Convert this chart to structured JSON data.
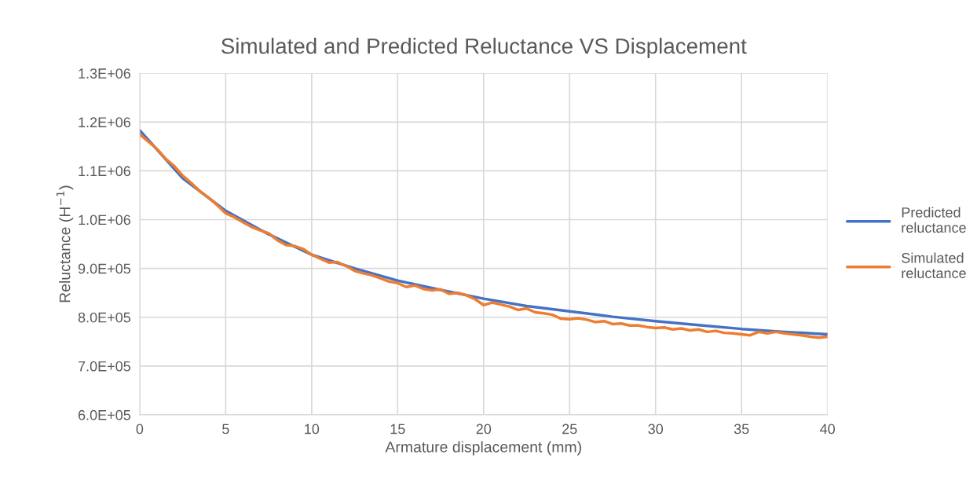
{
  "chart_data": {
    "type": "line",
    "title": "Simulated and Predicted Reluctance VS Displacement",
    "xlabel": "Armature displacement (mm)",
    "ylabel": "Reluctance (H$^{−1}$)",
    "series": [
      {
        "name": "Predicted reluctance",
        "color": "#4472c4",
        "x": [
          0,
          2.5,
          5,
          7.5,
          10,
          12.5,
          15,
          17.5,
          20,
          22.5,
          25,
          27.5,
          30,
          32.5,
          35,
          37.5,
          40
        ],
        "values": [
          1183000,
          1085000,
          1018000,
          970000,
          928000,
          900000,
          875000,
          856000,
          838000,
          823000,
          812000,
          801000,
          792000,
          784000,
          776000,
          770000,
          765000
        ]
      },
      {
        "name": "Simulated reluctance",
        "color": "#ed7d31",
        "x": [
          0,
          0.5,
          1,
          1.5,
          2,
          2.5,
          3,
          3.5,
          4,
          4.5,
          5,
          5.5,
          6,
          6.5,
          7,
          7.5,
          8,
          8.5,
          9,
          9.5,
          10,
          10.5,
          11,
          11.5,
          12,
          12.5,
          13,
          13.5,
          14,
          14.5,
          15,
          15.5,
          16,
          16.5,
          17,
          17.5,
          18,
          18.5,
          19,
          19.5,
          20,
          20.5,
          21,
          21.5,
          22,
          22.5,
          23,
          23.5,
          24,
          24.5,
          25,
          25.5,
          26,
          26.5,
          27,
          27.5,
          28,
          28.5,
          29,
          29.5,
          30,
          30.5,
          31,
          31.5,
          32,
          32.5,
          33,
          33.5,
          34,
          34.5,
          35,
          35.5,
          36,
          36.5,
          37,
          37.5,
          38,
          38.5,
          39,
          39.5,
          40
        ],
        "values": [
          1175000,
          1160000,
          1145000,
          1125000,
          1110000,
          1090000,
          1075000,
          1058000,
          1045000,
          1030000,
          1013000,
          1005000,
          995000,
          985000,
          978000,
          972000,
          958000,
          948000,
          946000,
          940000,
          928000,
          920000,
          912000,
          913000,
          905000,
          895000,
          890000,
          886000,
          880000,
          873000,
          870000,
          862000,
          865000,
          858000,
          855000,
          857000,
          848000,
          850000,
          845000,
          837000,
          825000,
          830000,
          826000,
          822000,
          815000,
          818000,
          810000,
          808000,
          805000,
          797000,
          796000,
          798000,
          795000,
          790000,
          792000,
          786000,
          787000,
          783000,
          783000,
          780000,
          778000,
          779000,
          775000,
          777000,
          773000,
          775000,
          770000,
          772000,
          768000,
          767000,
          765000,
          763000,
          770000,
          767000,
          770000,
          767000,
          765000,
          763000,
          760000,
          758000,
          760000
        ]
      }
    ],
    "xlim": [
      0,
      40
    ],
    "xticks": [
      0,
      5,
      10,
      15,
      20,
      25,
      30,
      35,
      40
    ],
    "ylim": [
      600000,
      1300000
    ],
    "yticks": [
      {
        "value": 600000,
        "label": "6.0E+05"
      },
      {
        "value": 700000,
        "label": "7.0E+05"
      },
      {
        "value": 800000,
        "label": "8.0E+05"
      },
      {
        "value": 900000,
        "label": "9.0E+05"
      },
      {
        "value": 1000000,
        "label": "1.0E+06"
      },
      {
        "value": 1100000,
        "label": "1.1E+06"
      },
      {
        "value": 1200000,
        "label": "1.2E+06"
      },
      {
        "value": 1300000,
        "label": "1.3E+06"
      }
    ],
    "grid": true,
    "legend": "right",
    "marker": "none",
    "line_style": "solid"
  }
}
